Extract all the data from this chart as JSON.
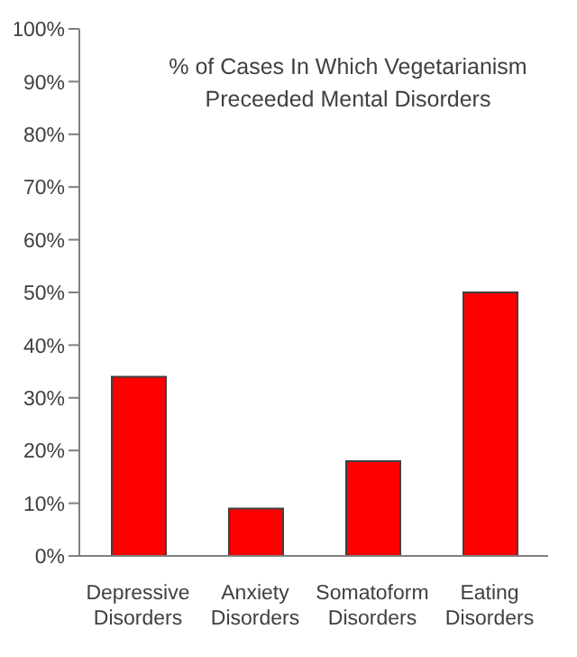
{
  "chart_data": {
    "type": "bar",
    "title": "% of Cases In Which Vegetarianism Preceeded Mental Disorders",
    "categories": [
      "Depressive Disorders",
      "Anxiety Disorders",
      "Somatoform Disorders",
      "Eating Disorders"
    ],
    "values": [
      34,
      9,
      18,
      50
    ],
    "color": "#ff0000",
    "ylim": [
      0,
      100
    ],
    "yticks": [
      {
        "value": 0,
        "label": "0%"
      },
      {
        "value": 10,
        "label": "10%"
      },
      {
        "value": 20,
        "label": "20%"
      },
      {
        "value": 30,
        "label": "30%"
      },
      {
        "value": 40,
        "label": "40%"
      },
      {
        "value": 50,
        "label": "50%"
      },
      {
        "value": 60,
        "label": "60%"
      },
      {
        "value": 70,
        "label": "70%"
      },
      {
        "value": 80,
        "label": "80%"
      },
      {
        "value": 90,
        "label": "90%"
      },
      {
        "value": 100,
        "label": "100%"
      }
    ],
    "grid": false,
    "legend": false
  }
}
